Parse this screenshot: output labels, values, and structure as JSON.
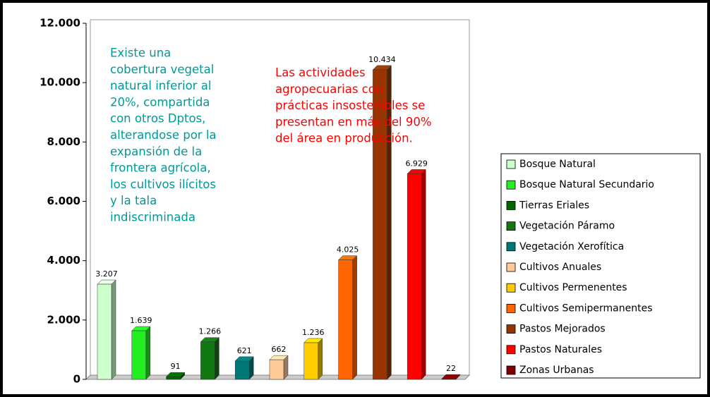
{
  "chart_data": {
    "type": "bar",
    "categories": [
      "Bosque Natural",
      "Bosque Natural Secundario",
      "Tierras Eriales",
      "Vegetación Páramo",
      "Vegetación Xerofítica",
      "Cultivos Anuales",
      "Cultivos Permenentes",
      "Cultivos Semipermanentes",
      "Pastos Mejorados",
      "Pastos Naturales",
      "Zonas Urbanas"
    ],
    "values": [
      3207,
      1639,
      91,
      1266,
      621,
      662,
      1236,
      4025,
      10434,
      6929,
      22
    ],
    "value_labels": [
      "3.207",
      "1.639",
      "91",
      "1.266",
      "621",
      "662",
      "1.236",
      "4.025",
      "10.434",
      "6.929",
      "22"
    ],
    "colors": [
      "#ccffcc",
      "#22ee22",
      "#006600",
      "#117711",
      "#007777",
      "#ffcc99",
      "#ffcc00",
      "#ff6600",
      "#993300",
      "#ff0000",
      "#800000"
    ],
    "ylim": [
      0,
      12000
    ],
    "yticks": [
      0,
      {
        "value": 2000,
        "label": "2.000"
      },
      {
        "value": 4000,
        "label": "4.000"
      },
      {
        "value": 6000,
        "label": "6.000"
      },
      {
        "value": 8000,
        "label": "8.000"
      },
      {
        "value": 10000,
        "label": "10.000"
      },
      {
        "value": 12000,
        "label": "12.000"
      }
    ],
    "legend": "right",
    "annotations": [
      {
        "color": "#009999",
        "lines": [
          "Existe una",
          "cobertura vegetal",
          "natural inferior al",
          "20%, compartida",
          "con otros Dptos,",
          "alterandose por la",
          "expansión de la",
          "frontera agrícola,",
          "los cultivos ilícitos",
          "y la tala",
          "indiscriminada"
        ]
      },
      {
        "color": "#ff0000",
        "lines": [
          "Las actividades",
          "agropecuarias con",
          "prácticas insostenibles se",
          "presentan en más del 90%",
          "del área en producción."
        ]
      }
    ]
  }
}
